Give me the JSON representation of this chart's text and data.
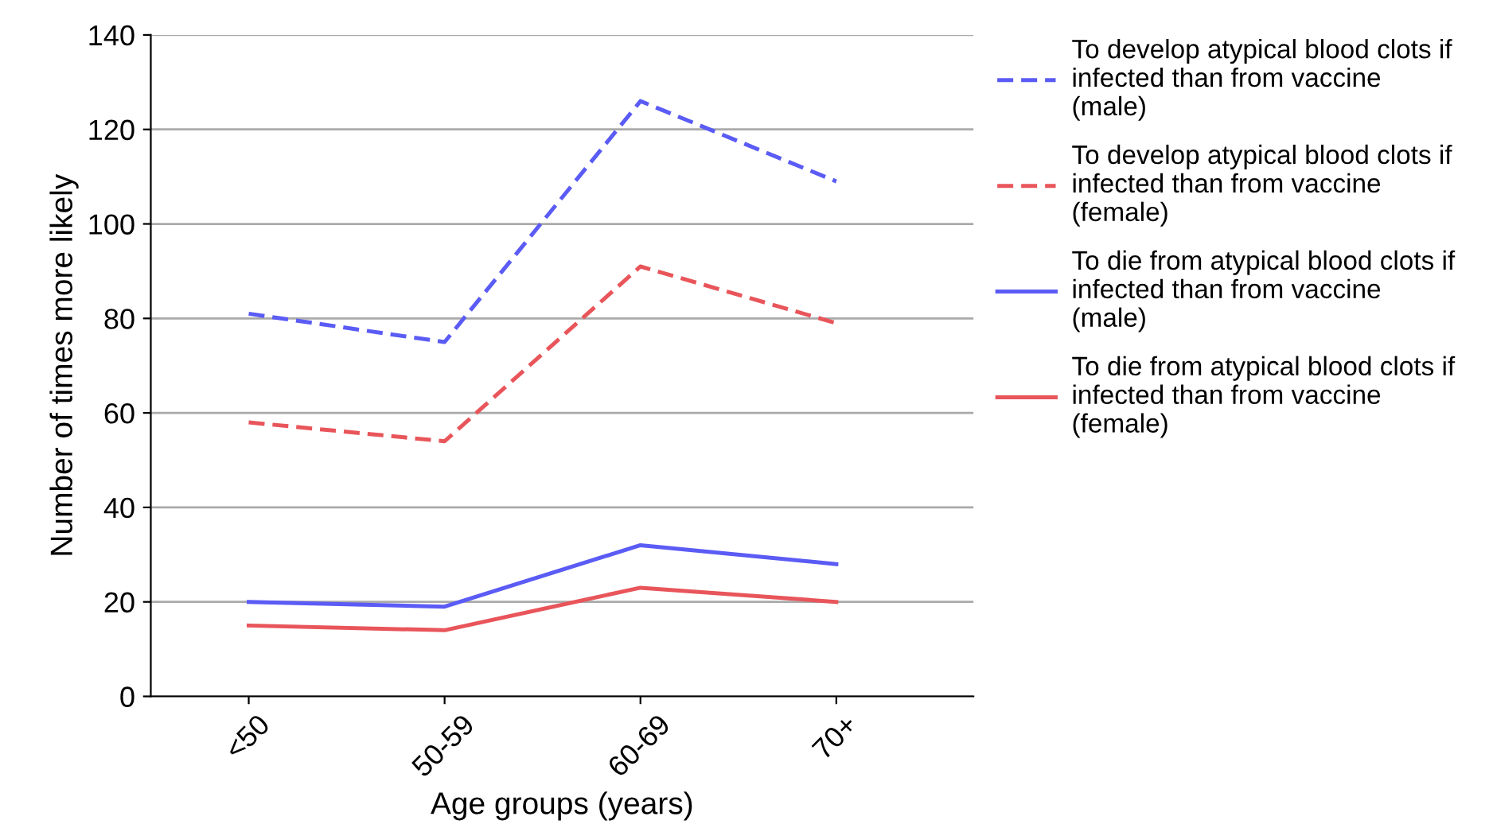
{
  "chart_data": {
    "type": "line",
    "xlabel": "Age groups (years)",
    "ylabel": "Number of times more likely",
    "categories": [
      "<50",
      "50-59",
      "60-69",
      "70+"
    ],
    "series": [
      {
        "name": "To develop atypical blood clots if\ninfected than from vaccine\n(male)",
        "color": "#5b5bf5",
        "line_style": "dashed",
        "values": [
          81,
          75,
          126,
          109
        ]
      },
      {
        "name": "To develop atypical blood clots if\ninfected than from vaccine\n(female)",
        "color": "#e8555a",
        "line_style": "dashed",
        "values": [
          58,
          54,
          91,
          79
        ]
      },
      {
        "name": "To die from atypical blood clots if\ninfected than from vaccine\n(male)",
        "color": "#5b5bf5",
        "line_style": "solid",
        "values": [
          20,
          19,
          32,
          28
        ]
      },
      {
        "name": "To die from atypical blood clots if\ninfected than from vaccine\n(female)",
        "color": "#e8555a",
        "line_style": "solid",
        "values": [
          15,
          14,
          23,
          20
        ]
      }
    ],
    "ylim": [
      0,
      140
    ],
    "yticks": [
      0,
      20,
      40,
      60,
      80,
      100,
      120,
      140
    ],
    "grid": "y",
    "legend": "right",
    "marker": "none"
  }
}
